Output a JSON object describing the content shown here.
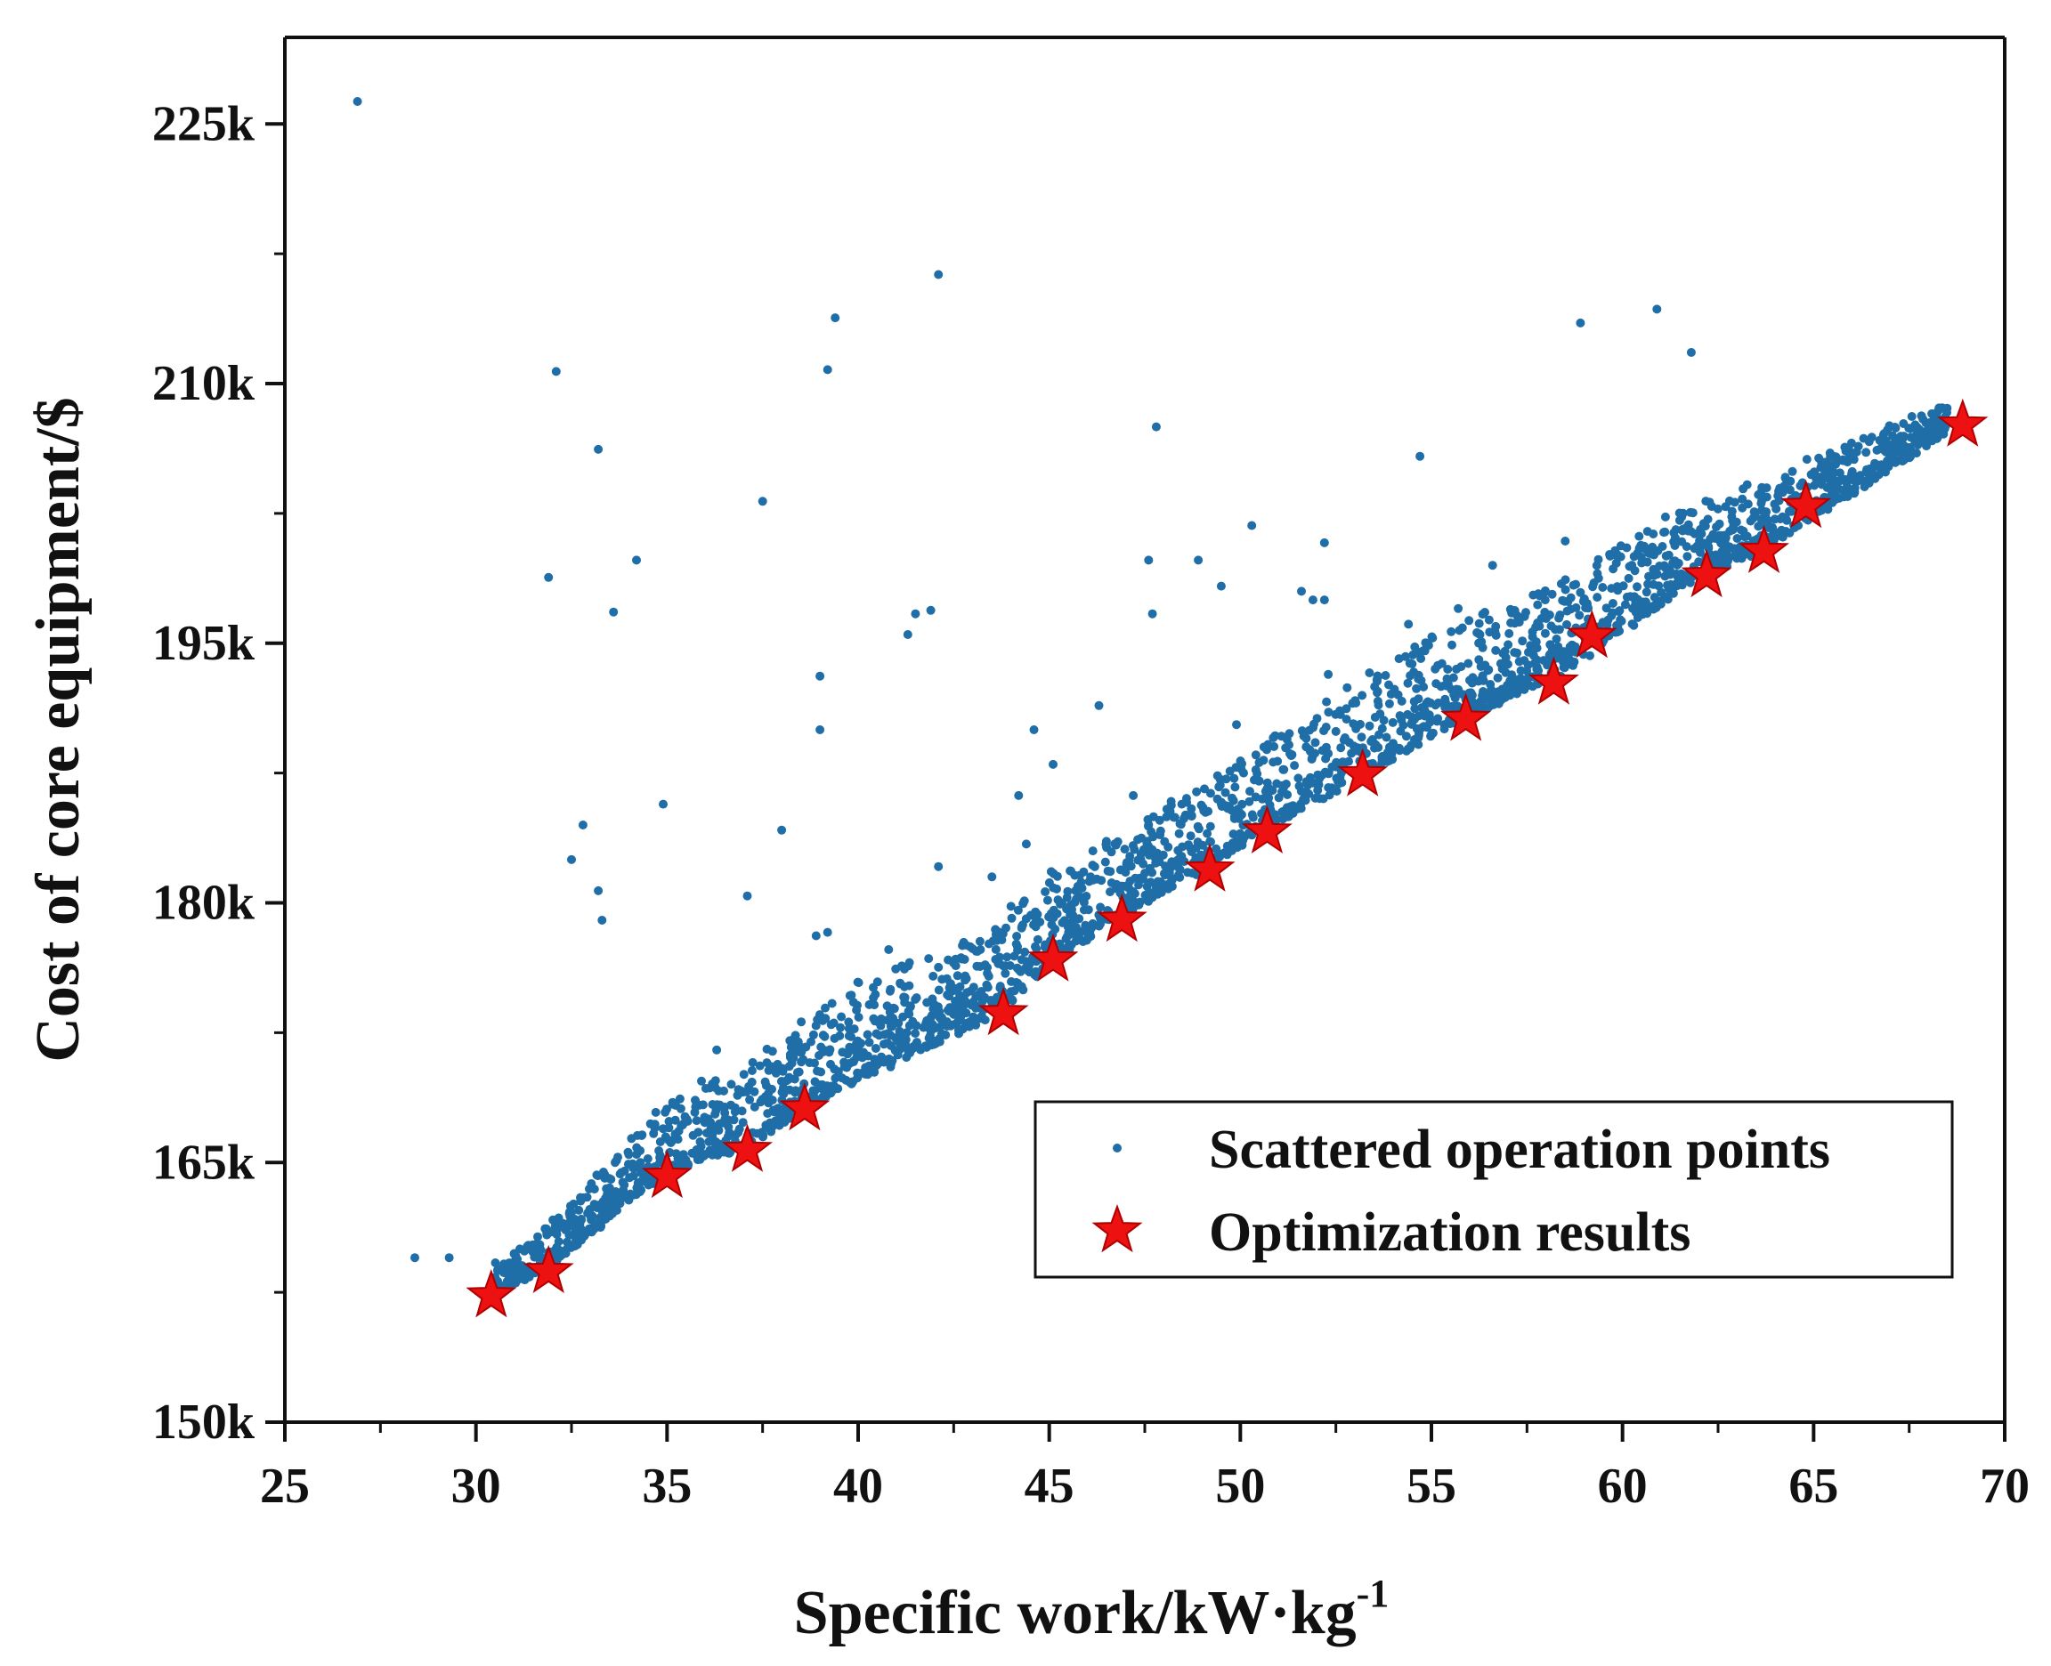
{
  "chart_data": {
    "type": "scatter",
    "xlabel": "Specific work/kW·kg",
    "xlabel_superscript": "-1",
    "ylabel": "Cost of core equipment/$",
    "xlim": [
      25,
      70
    ],
    "ylim": [
      150000,
      230000
    ],
    "xticks": [
      25,
      30,
      35,
      40,
      45,
      50,
      55,
      60,
      65,
      70
    ],
    "xtick_labels": [
      "25",
      "30",
      "35",
      "40",
      "45",
      "50",
      "55",
      "60",
      "65",
      "70"
    ],
    "yticks": [
      150000,
      165000,
      180000,
      195000,
      210000,
      225000
    ],
    "ytick_labels": [
      "150k",
      "165k",
      "180k",
      "195k",
      "210k",
      "225k"
    ],
    "legend_position": "lower-right",
    "colors": {
      "scatter": "#1f6ea8",
      "star": "#ee1111",
      "star_edge": "#b00000",
      "axis": "#111111"
    },
    "series": [
      {
        "name": "Scattered operation points",
        "marker": "dot",
        "generator": {
          "description": "dense band of operation points above the optimization front",
          "x_range": [
            30.5,
            68.5
          ],
          "lower_bound_points": [
            [
              30.4,
              157200
            ],
            [
              31.9,
              158700
            ],
            [
              35.0,
              164200
            ],
            [
              37.1,
              165600
            ],
            [
              38.6,
              168000
            ],
            [
              43.8,
              173500
            ],
            [
              45.1,
              176500
            ],
            [
              46.9,
              179000
            ],
            [
              49.2,
              181800
            ],
            [
              50.7,
              184000
            ],
            [
              53.2,
              187200
            ],
            [
              55.9,
              190400
            ],
            [
              58.2,
              192700
            ],
            [
              62.2,
              198800
            ],
            [
              63.7,
              200200
            ],
            [
              68.9,
              207500
            ]
          ],
          "band_width_points": [
            [
              30.4,
              1500
            ],
            [
              35,
              4000
            ],
            [
              40,
              5500
            ],
            [
              45,
              5000
            ],
            [
              50,
              5000
            ],
            [
              55,
              6000
            ],
            [
              60,
              5000
            ],
            [
              65,
              3500
            ],
            [
              68.5,
              1500
            ]
          ],
          "count": 2600,
          "seed": 7
        },
        "x": [
          26.9,
          28.4,
          29.3,
          32.1,
          31.9,
          33.2,
          33.6,
          34.2,
          32.5,
          32.8,
          33.2,
          33.3,
          34.9,
          37.5,
          38.0,
          37.1,
          39.4,
          39.2,
          39.0,
          39.0,
          38.9,
          39.2,
          41.3,
          41.5,
          41.9,
          42.1,
          42.1,
          43.8,
          44.0,
          44.6,
          44.2,
          45.1,
          46.3,
          47.8,
          47.6,
          47.7,
          47.2,
          46.5,
          48.9,
          49.5,
          49.9,
          50.3,
          51.6,
          51.9,
          52.2,
          52.2,
          52.3,
          52.5,
          52.6,
          54.7,
          54.4,
          56.6,
          55.7,
          58.9,
          58.5,
          60.9,
          61.8,
          43.5,
          44.4,
          40.8,
          35.9,
          36.3,
          48.4
        ],
        "y": [
          226300,
          159500,
          159500,
          210700,
          198800,
          206200,
          196800,
          199800,
          182500,
          184500,
          180700,
          179000,
          185700,
          203200,
          184200,
          180400,
          213800,
          210800,
          193100,
          190000,
          178100,
          178300,
          195500,
          196700,
          196900,
          216300,
          182100,
          174600,
          179800,
          190000,
          186200,
          188000,
          191400,
          207500,
          199800,
          196700,
          186200,
          183200,
          199800,
          198300,
          190300,
          201800,
          198000,
          197500,
          200800,
          197500,
          193200,
          189900,
          191100,
          205800,
          196100,
          199500,
          197000,
          213500,
          200900,
          214300,
          211800,
          181500,
          183400,
          177300,
          169700,
          171500,
          184000
        ]
      },
      {
        "name": "Optimization results",
        "marker": "star",
        "x": [
          30.4,
          31.9,
          35.0,
          37.1,
          38.6,
          43.8,
          45.1,
          46.9,
          49.2,
          50.7,
          53.2,
          55.9,
          58.2,
          59.2,
          62.2,
          63.7,
          64.8,
          68.9
        ],
        "y": [
          157300,
          158700,
          164200,
          165700,
          168100,
          173600,
          176700,
          179000,
          181900,
          184100,
          187400,
          190600,
          192700,
          195400,
          198900,
          200300,
          202900,
          207600
        ]
      }
    ]
  }
}
